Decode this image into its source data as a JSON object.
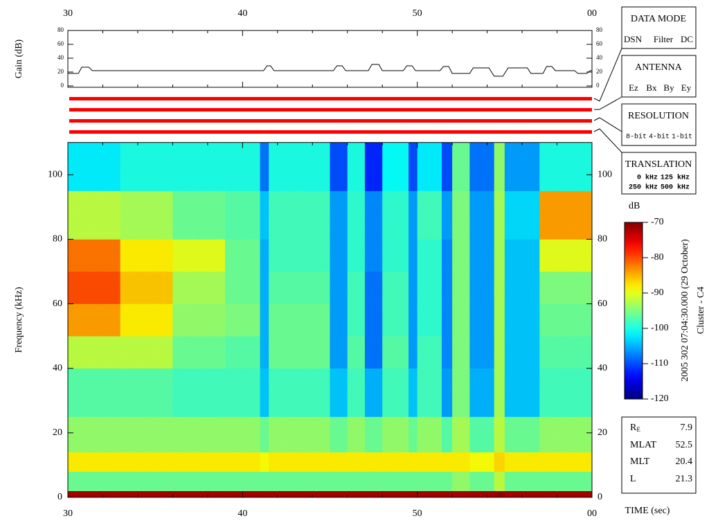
{
  "chart_data": [
    {
      "type": "line",
      "ylabel": "Gain (dB)",
      "color": "#000000",
      "x": [
        30,
        30.6,
        30.8,
        31.2,
        31.4,
        41.2,
        41.4,
        41.6,
        41.8,
        45.2,
        45.4,
        45.7,
        45.9,
        47.2,
        47.4,
        47.8,
        48,
        49.2,
        49.4,
        49.7,
        49.9,
        51.3,
        51.5,
        51.8,
        52,
        53,
        53.2,
        54.1,
        54.4,
        54.9,
        55.2,
        56.3,
        56.5,
        57.2,
        57.4,
        57.7,
        57.9,
        59,
        59.2,
        59.7,
        59.9,
        60
      ],
      "values": [
        18,
        18,
        27,
        27,
        22,
        22,
        29,
        29,
        22,
        22,
        29,
        29,
        22,
        22,
        31,
        31,
        22,
        22,
        29,
        29,
        22,
        22,
        28,
        28,
        18,
        18,
        26,
        26,
        14,
        14,
        26,
        26,
        18,
        18,
        28,
        28,
        22,
        22,
        18,
        18,
        22,
        22
      ],
      "xlim": [
        30,
        60
      ],
      "xticks": [
        30,
        40,
        50,
        {
          "value": 60,
          "label": "00"
        }
      ],
      "xminorticks": [
        32,
        34,
        36,
        38,
        42,
        44,
        46,
        48,
        52,
        54,
        56,
        58
      ],
      "ylim": [
        0,
        80
      ],
      "yticks": [
        0,
        20,
        40,
        60,
        80
      ]
    },
    {
      "type": "heatmap",
      "ylabel": "Frequency (kHz)",
      "xlabel": "TIME (sec)",
      "zlabel": "dB",
      "xbins": [
        30,
        33,
        36,
        39,
        41,
        41.5,
        45,
        46,
        47,
        48,
        49.5,
        50,
        51.4,
        52,
        53,
        54.4,
        55,
        57,
        60
      ],
      "ybins": [
        0,
        2,
        8,
        14,
        25,
        40,
        50,
        60,
        70,
        80,
        95,
        110
      ],
      "values": [
        [
          -72,
          -96,
          -88,
          -94,
          -97,
          -92,
          -84,
          -80,
          -82,
          -92,
          -102
        ],
        [
          -72,
          -96,
          -88,
          -94,
          -97,
          -92,
          -88,
          -86,
          -88,
          -93,
          -100
        ],
        [
          -72,
          -96,
          -88,
          -94,
          -98,
          -96,
          -94,
          -93,
          -90,
          -96,
          -100
        ],
        [
          -72,
          -96,
          -88,
          -94,
          -98,
          -97,
          -95,
          -96,
          -96,
          -97,
          -100
        ],
        [
          -72,
          -96,
          -89,
          -96,
          -104,
          -105,
          -105,
          -105,
          -105,
          -104,
          -108
        ],
        [
          -72,
          -96,
          -88,
          -94,
          -98,
          -96,
          -96,
          -97,
          -98,
          -98,
          -100
        ],
        [
          -72,
          -96,
          -88,
          -96,
          -104,
          -106,
          -106,
          -106,
          -106,
          -106,
          -110
        ],
        [
          -72,
          -96,
          -88,
          -94,
          -98,
          -97,
          -98,
          -98,
          -99,
          -99,
          -100
        ],
        [
          -72,
          -96,
          -88,
          -96,
          -105,
          -108,
          -108,
          -108,
          -107,
          -107,
          -112
        ],
        [
          -72,
          -96,
          -88,
          -94,
          -98,
          -97,
          -98,
          -98,
          -99,
          -99,
          -101
        ],
        [
          -72,
          -96,
          -88,
          -96,
          -104,
          -106,
          -106,
          -106,
          -106,
          -106,
          -110
        ],
        [
          -72,
          -96,
          -88,
          -94,
          -98,
          -98,
          -99,
          -99,
          -99,
          -98,
          -102
        ],
        [
          -72,
          -96,
          -88,
          -97,
          -106,
          -107,
          -107,
          -107,
          -107,
          -106,
          -110
        ],
        [
          -72,
          -94,
          -88,
          -93,
          -95,
          -95,
          -95,
          -95,
          -95,
          -95,
          -96
        ],
        [
          -72,
          -96,
          -89,
          -97,
          -105,
          -106,
          -106,
          -106,
          -106,
          -106,
          -108
        ],
        [
          -71,
          -92,
          -87,
          -92,
          -93,
          -93,
          -93,
          -93,
          -93,
          -93,
          -94
        ],
        [
          -72,
          -96,
          -88,
          -96,
          -104,
          -104,
          -104,
          -104,
          -104,
          -103,
          -106
        ],
        [
          -72,
          -96,
          -88,
          -94,
          -98,
          -97,
          -96,
          -95,
          -90,
          -84,
          -100
        ]
      ],
      "xlim": [
        30,
        60
      ],
      "xticks": [
        30,
        40,
        50,
        {
          "value": 60,
          "label": "00"
        }
      ],
      "xminorticks": [
        32,
        34,
        36,
        38,
        42,
        44,
        46,
        48,
        52,
        54,
        56,
        58
      ],
      "ylim": [
        0,
        110
      ],
      "yticks": [
        0,
        20,
        40,
        60,
        80,
        100
      ],
      "zlim": [
        -120,
        -70
      ],
      "zticks": [
        -70,
        -80,
        -90,
        -100,
        -110,
        -120
      ]
    }
  ],
  "panels": [
    {
      "title": "DATA MODE",
      "options": [
        {
          "text": "DSN",
          "color": "#ff0000"
        },
        {
          "text": "Filter",
          "color": "#00cc00"
        },
        {
          "text": "DC",
          "color": "#0000ff"
        }
      ]
    },
    {
      "title": "ANTENNA",
      "options": [
        {
          "text": "Ez",
          "color": "#ff0000"
        },
        {
          "text": "Bx",
          "color": "#00cc00"
        },
        {
          "text": "By",
          "color": "#0000ff"
        },
        {
          "text": "Ey",
          "color": "#000000"
        }
      ]
    },
    {
      "title": "RESOLUTION",
      "options": [
        {
          "text": "8-bit",
          "color": "#ff0000"
        },
        {
          "text": "4-bit",
          "color": "#00cc00"
        },
        {
          "text": "1-bit",
          "color": "#0000ff"
        }
      ]
    },
    {
      "title": "TRANSLATION",
      "options": [
        {
          "text": "0 kHz",
          "color": "#ff0000"
        },
        {
          "text": "125 kHz",
          "color": "#00cc00"
        },
        {
          "text": "250 kHz",
          "color": "#0000ff"
        },
        {
          "text": "500 kHz",
          "color": "#000000"
        }
      ]
    }
  ],
  "timestamp": "2005 302 07:04:30.000 (29 October)",
  "spacecraft": "Cluster - C4",
  "info": {
    "rows": [
      {
        "label": "R",
        "sub": "E",
        "value": "7.9"
      },
      {
        "label": "MLAT",
        "value": "52.5"
      },
      {
        "label": "MLT",
        "value": "20.4"
      },
      {
        "label": "L",
        "value": "21.3"
      }
    ]
  }
}
